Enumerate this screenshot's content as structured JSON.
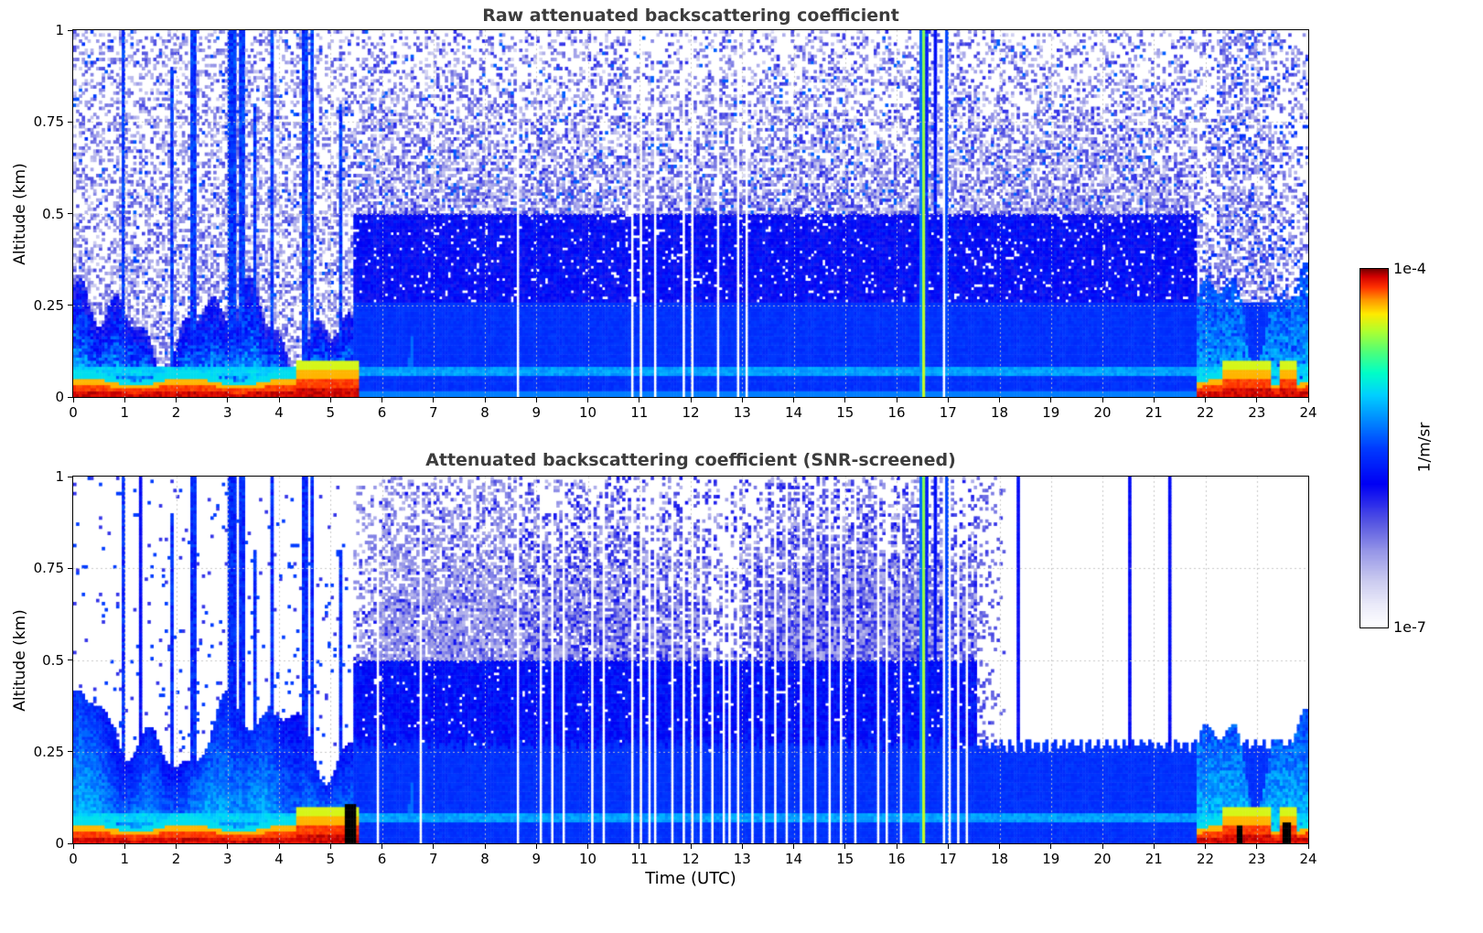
{
  "figure": {
    "background_color": "#ffffff",
    "text_color": "#000000",
    "title_color": "#3c3c3c"
  },
  "colorbar": {
    "label": "1/m/sr",
    "max_label": "1e-4",
    "min_label": "1e-7",
    "scale": "log10",
    "vmin": 1e-07,
    "vmax": 0.0001,
    "stops": [
      [
        0.0,
        "#ffffff"
      ],
      [
        0.06,
        "#ececfa"
      ],
      [
        0.13,
        "#cbcbf0"
      ],
      [
        0.21,
        "#9898e8"
      ],
      [
        0.29,
        "#5858e2"
      ],
      [
        0.4,
        "#0000f5"
      ],
      [
        0.5,
        "#003cff"
      ],
      [
        0.58,
        "#008cff"
      ],
      [
        0.65,
        "#00d2ff"
      ],
      [
        0.71,
        "#00ffc8"
      ],
      [
        0.77,
        "#50ff78"
      ],
      [
        0.83,
        "#b4ff2d"
      ],
      [
        0.875,
        "#ffeb00"
      ],
      [
        0.915,
        "#ff9600"
      ],
      [
        0.95,
        "#ff3200"
      ],
      [
        0.98,
        "#d20000"
      ],
      [
        1.0,
        "#7a0000"
      ]
    ]
  },
  "chart_data": [
    {
      "type": "heatmap",
      "title": "Raw attenuated backscattering coefficient",
      "xlabel": "",
      "ylabel": "Altitude (km)",
      "xlim": [
        0,
        24
      ],
      "ylim": [
        0,
        1
      ],
      "xticks": [
        0,
        1,
        2,
        3,
        4,
        5,
        6,
        7,
        8,
        9,
        10,
        11,
        12,
        13,
        14,
        15,
        16,
        17,
        18,
        19,
        20,
        21,
        22,
        23,
        24
      ],
      "xtick_labels": [
        "0",
        "1",
        "2",
        "3",
        "4",
        "5",
        "6",
        "7",
        "8",
        "9",
        "10",
        "11",
        "12",
        "13",
        "14",
        "15",
        "16",
        "17",
        "18",
        "19",
        "20",
        "21",
        "22",
        "23",
        "24"
      ],
      "yticks": [
        0,
        0.25,
        0.5,
        0.75,
        1
      ],
      "ytick_labels": [
        "0",
        "0.25",
        "0.5",
        "0.75",
        "1"
      ],
      "grid": true,
      "units": "1/m/sr",
      "features": {
        "seed": 7,
        "surface_aerosol_layer_utc": [
          [
            0,
            5.55
          ],
          [
            21.85,
            24
          ]
        ],
        "convective_period_utc": [
          0,
          5.45
        ],
        "plumes": [
          [
            0.97,
            0.05,
            1
          ],
          [
            1.93,
            0.04,
            0.9
          ],
          [
            2.33,
            0.05,
            1
          ],
          [
            3.08,
            0.09,
            1
          ],
          [
            3.28,
            0.05,
            1
          ],
          [
            3.55,
            0.04,
            0.8
          ],
          [
            3.85,
            0.05,
            1
          ],
          [
            4.5,
            0.07,
            1
          ],
          [
            4.62,
            0.04,
            1
          ],
          [
            5.2,
            0.04,
            0.8
          ]
        ],
        "rain_period_utc": [
          5.45,
          21.85
        ],
        "solid_layer_top_km": 0.26,
        "missing_data_utc": [
          8.62,
          10.88,
          11.02,
          11.3,
          11.85,
          12.02,
          12.55,
          12.93,
          13.06,
          16.9
        ],
        "strong_plume_utc": 16.52,
        "cyan_streaks": [
          [
            16.95,
            0.03,
            -5.3
          ],
          [
            16.77,
            0.022,
            -5.5
          ]
        ],
        "artifact_line_km": 0.07,
        "evening_enhanced_utc": [
          22.2,
          23.35
        ]
      }
    },
    {
      "type": "heatmap",
      "title": "Attenuated backscattering coefficient (SNR-screened)",
      "xlabel": "Time (UTC)",
      "ylabel": "Altitude (km)",
      "xlim": [
        0,
        24
      ],
      "ylim": [
        0,
        1
      ],
      "xticks": [
        0,
        1,
        2,
        3,
        4,
        5,
        6,
        7,
        8,
        9,
        10,
        11,
        12,
        13,
        14,
        15,
        16,
        17,
        18,
        19,
        20,
        21,
        22,
        23,
        24
      ],
      "xtick_labels": [
        "0",
        "1",
        "2",
        "3",
        "4",
        "5",
        "6",
        "7",
        "8",
        "9",
        "10",
        "11",
        "12",
        "13",
        "14",
        "15",
        "16",
        "17",
        "18",
        "19",
        "20",
        "21",
        "22",
        "23",
        "24"
      ],
      "yticks": [
        0,
        0.25,
        0.5,
        0.75,
        1
      ],
      "ytick_labels": [
        "0",
        "0.25",
        "0.5",
        "0.75",
        "1"
      ],
      "grid": true,
      "units": "1/m/sr",
      "features": {
        "seed": 13,
        "surface_aerosol_layer_utc": [
          [
            0,
            5.55
          ],
          [
            21.85,
            24
          ]
        ],
        "convective_period_utc": [
          0,
          5.45
        ],
        "plumes": [
          [
            0.97,
            0.05,
            1
          ],
          [
            1.93,
            0.04,
            0.9
          ],
          [
            2.33,
            0.05,
            1
          ],
          [
            3.08,
            0.09,
            1
          ],
          [
            3.28,
            0.05,
            1
          ],
          [
            3.55,
            0.04,
            0.8
          ],
          [
            3.85,
            0.05,
            1
          ],
          [
            4.5,
            0.07,
            1
          ],
          [
            4.62,
            0.04,
            1
          ],
          [
            5.2,
            0.04,
            0.8
          ]
        ],
        "rain_period_utc": [
          5.45,
          17.55
        ],
        "clearing_utc": 17.55,
        "solid_layer_top_km": 0.27,
        "missing_data_utc": [
          5.92,
          6.28,
          6.75,
          8.62,
          8.78,
          9.08,
          9.32,
          9.52,
          9.78,
          10.08,
          10.32,
          10.55,
          10.88,
          11.02,
          11.18,
          11.3,
          11.45,
          11.62,
          11.85,
          12.02,
          12.18,
          12.4,
          12.55,
          12.62,
          12.75,
          12.93,
          13.06,
          13.2,
          13.42,
          13.62,
          13.88,
          14.12,
          14.42,
          14.68,
          14.92,
          15.18,
          15.45,
          15.62,
          15.82,
          16.08,
          16.28,
          16.72,
          16.9,
          17.02,
          17.18,
          17.35
        ],
        "strong_plume_utc": 16.52,
        "cyan_streaks": [
          [
            16.95,
            0.03,
            -5.3
          ],
          [
            16.77,
            0.022,
            -5.5
          ]
        ],
        "artifact_line_km": 0.07,
        "black_marks": [
          [
            5.28,
            5.5,
            0.11
          ],
          [
            22.6,
            22.74,
            0.05
          ],
          [
            23.5,
            23.66,
            0.06
          ],
          [
            0.875,
            0.905,
            0.03
          ],
          [
            2.04,
            2.07,
            0.028
          ]
        ],
        "thin_blue_lines_utc": [
          0.88,
          1.3,
          18.35,
          20.52,
          21.32,
          23.9
        ]
      }
    }
  ]
}
